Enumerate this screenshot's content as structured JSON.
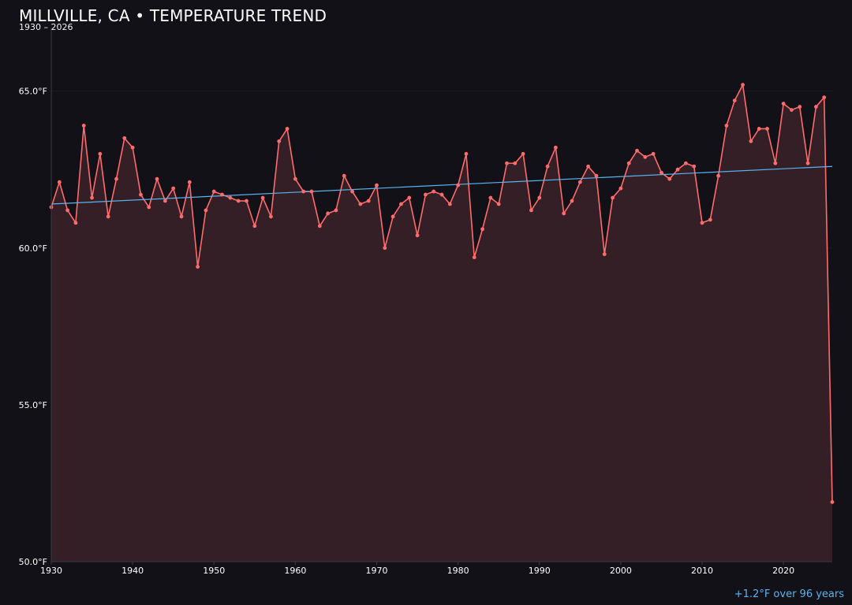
{
  "header": {
    "title": "MILLVILLE, CA • TEMPERATURE TREND",
    "subtitle": "1930 – 2026"
  },
  "footer": {
    "trend_note": "+1.2°F over 96 years"
  },
  "colors": {
    "background": "#121117",
    "series_line": "#ff6b6b",
    "area_fill": "#341f26",
    "trend_line": "#5ab4f0",
    "grid": "#1d1c22",
    "axis": "#3a3940",
    "text": "#ffffff"
  },
  "chart_data": {
    "type": "line",
    "title": "MILLVILLE, CA • TEMPERATURE TREND",
    "subtitle": "1930 – 2026",
    "xlabel": "",
    "ylabel": "",
    "xlim": [
      1930,
      2026
    ],
    "ylim": [
      50.0,
      67.0
    ],
    "x_ticks": [
      1930,
      1940,
      1950,
      1960,
      1970,
      1980,
      1990,
      2000,
      2010,
      2020
    ],
    "x_tick_labels": [
      "1930",
      "1940",
      "1950",
      "1960",
      "1970",
      "1980",
      "1990",
      "2000",
      "2010",
      "2020"
    ],
    "y_ticks": [
      50,
      55,
      60,
      65
    ],
    "y_tick_labels": [
      "50.0°F",
      "55.0°F",
      "60.0°F",
      "65.0°F"
    ],
    "grid": true,
    "area_fill": true,
    "series": [
      {
        "x": [
          1930,
          1931,
          1932,
          1933,
          1934,
          1935,
          1936,
          1937,
          1938,
          1939,
          1940,
          1941,
          1942,
          1943,
          1944,
          1945,
          1946,
          1947,
          1948,
          1949,
          1950,
          1951,
          1952,
          1953,
          1954,
          1955,
          1956,
          1957,
          1958,
          1959,
          1960,
          1961,
          1962,
          1963,
          1964,
          1965,
          1966,
          1967,
          1968,
          1969,
          1970,
          1971,
          1972,
          1973,
          1974,
          1975,
          1976,
          1977,
          1978,
          1979,
          1980,
          1981,
          1982,
          1983,
          1984,
          1985,
          1986,
          1987,
          1988,
          1989,
          1990,
          1991,
          1992,
          1993,
          1994,
          1995,
          1996,
          1997,
          1998,
          1999,
          2000,
          2001,
          2002,
          2003,
          2004,
          2005,
          2006,
          2007,
          2008,
          2009,
          2010,
          2011,
          2012,
          2013,
          2014,
          2015,
          2016,
          2017,
          2018,
          2019,
          2020,
          2021,
          2022,
          2023,
          2024,
          2025,
          2026
        ],
        "values": [
          61.3,
          62.1,
          61.2,
          60.8,
          63.9,
          61.6,
          63.0,
          61.0,
          62.2,
          63.5,
          63.2,
          61.7,
          61.3,
          62.2,
          61.5,
          61.9,
          61.0,
          62.1,
          59.4,
          61.2,
          61.8,
          61.7,
          61.6,
          61.5,
          61.5,
          60.7,
          61.6,
          61.0,
          63.4,
          63.8,
          62.2,
          61.8,
          61.8,
          60.7,
          61.1,
          61.2,
          62.3,
          61.8,
          61.4,
          61.5,
          62.0,
          60.0,
          61.0,
          61.4,
          61.6,
          60.4,
          61.7,
          61.8,
          61.7,
          61.4,
          62.0,
          63.0,
          59.7,
          60.6,
          61.6,
          61.4,
          62.7,
          62.7,
          63.0,
          61.2,
          61.6,
          62.6,
          63.2,
          61.1,
          61.5,
          62.1,
          62.6,
          62.3,
          59.8,
          61.6,
          61.9,
          62.7,
          63.1,
          62.9,
          63.0,
          62.4,
          62.2,
          62.5,
          62.7,
          62.6,
          60.8,
          60.9,
          62.3,
          63.9,
          64.7,
          65.2,
          63.4,
          63.8,
          63.8,
          62.7,
          64.6,
          64.4,
          64.5,
          62.7,
          64.5,
          64.8,
          51.9
        ]
      }
    ],
    "trend_line": {
      "x": [
        1930,
        2026
      ],
      "values": [
        61.4,
        62.6
      ],
      "label": "+1.2°F over 96 years"
    }
  }
}
